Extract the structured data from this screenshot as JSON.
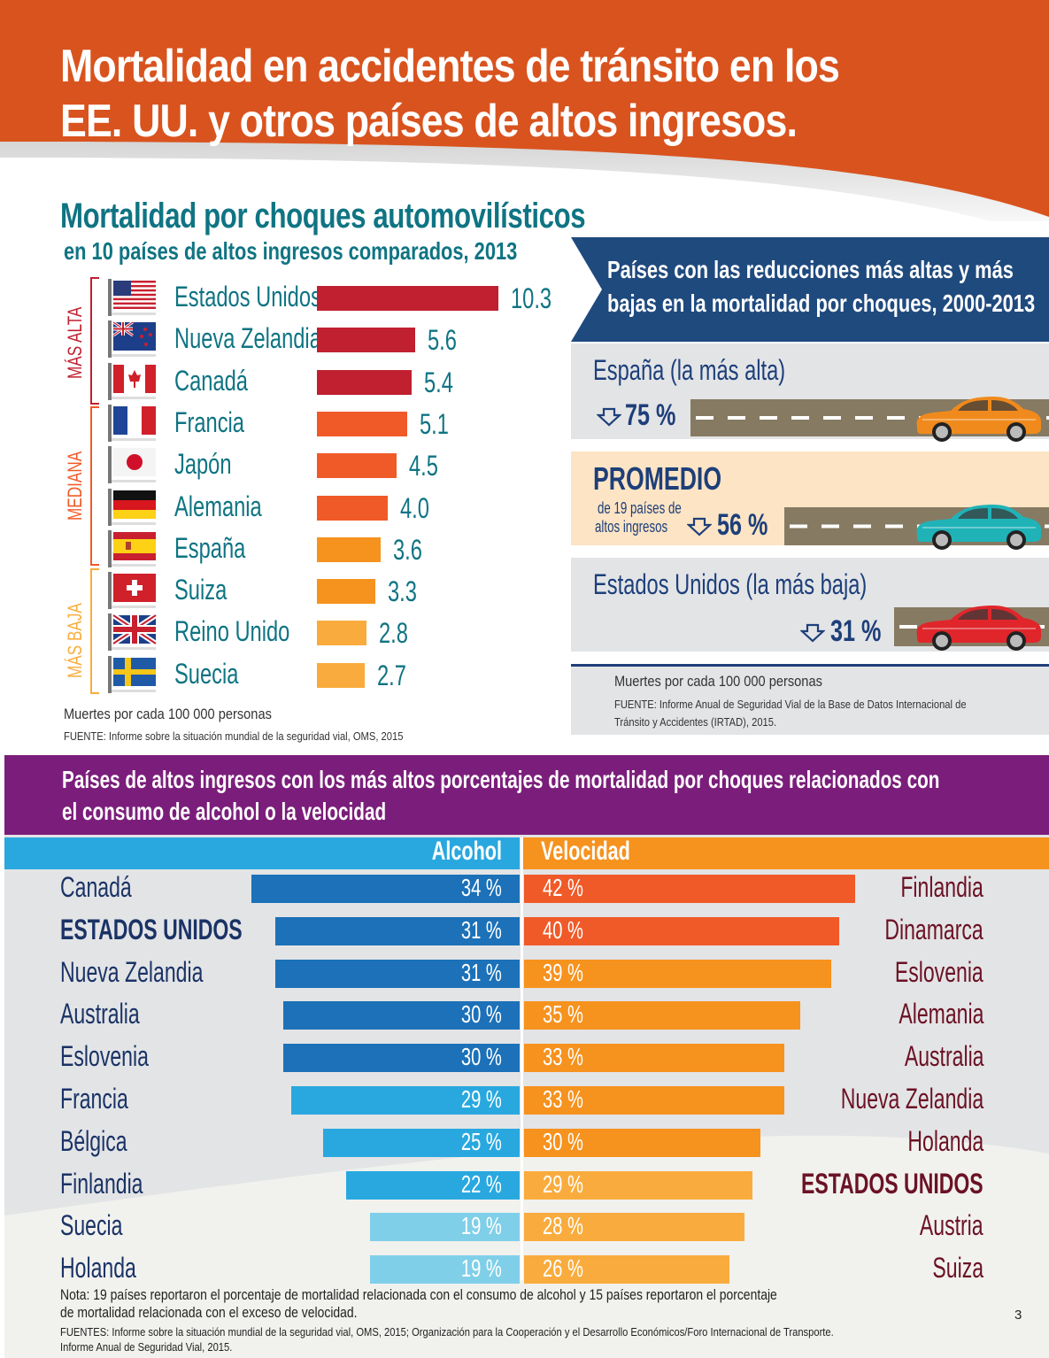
{
  "header": {
    "title_line1": "Mortalidad en accidentes de tránsito en los",
    "title_line2": "EE. UU. y otros países de altos ingresos.",
    "color": "#d9531e"
  },
  "left": {
    "title": "Mortalidad por choques automovilísticos",
    "subtitle": "en 10 países de altos ingresos comparados, 2013",
    "unit": "Muertes por cada 100 000 personas",
    "source": "FUENTE: Informe sobre la situación mundial de la seguridad vial, OMS, 2015",
    "groups": [
      {
        "label": "MÁS ALTA",
        "color": "#c0202f"
      },
      {
        "label": "MEDIANA",
        "color": "#f05a28"
      },
      {
        "label": "MÁS BAJA",
        "color": "#f9ac3d"
      }
    ]
  },
  "right": {
    "banner_title_line1": "Países con las reducciones más altas y más",
    "banner_title_line2": "bajas en la mortalidad por choques, 2000-2013",
    "spain_label": "España (la más alta)",
    "spain_pct": "75 %",
    "avg_label": "PROMEDIO",
    "avg_sub_line1": "de 19 países de",
    "avg_sub_line2": "altos ingresos",
    "avg_pct": "56 %",
    "us_label": "Estados Unidos  (la más baja)",
    "us_pct": "31 %",
    "unit": "Muertes por cada 100 000 personas",
    "source_line1": "FUENTE: Informe Anual de Seguridad Vial de la Base de Datos Internacional de",
    "source_line2": "Tránsito y Accidentes (IRTAD), 2015."
  },
  "bottom": {
    "title_line1": "Países de altos ingresos con los más altos porcentajes de mortalidad por choques relacionados con",
    "title_line2": "el consumo de alcohol o la velocidad",
    "alcohol_header": "Alcohol",
    "speed_header": "Velocidad",
    "note_line1": "Nota: 19 países reportaron el porcentaje de mortalidad relacionada con el consumo de alcohol y 15 países reportaron el porcentaje",
    "note_line2": "de mortalidad relacionada con el exceso de velocidad.",
    "sources_line1": "FUENTES: Informe sobre la situación mundial de la seguridad vial, OMS, 2015; Organización para la Cooperación y el  Desarrollo Económicos/Foro Internacional de Transporte.",
    "sources_line2": "Informe Anual de Seguridad Vial, 2015.",
    "page_number": "3"
  },
  "chart_data": [
    {
      "type": "bar",
      "orientation": "horizontal",
      "title": "Mortalidad por choques automovilísticos en 10 países de altos ingresos comparados, 2013",
      "xlabel": "Muertes por cada 100 000 personas",
      "categories": [
        "Estados Unidos",
        "Nueva Zelandia",
        "Canadá",
        "Francia",
        "Japón",
        "Alemania",
        "España",
        "Suiza",
        "Reino Unido",
        "Suecia"
      ],
      "values": [
        10.3,
        5.6,
        5.4,
        5.1,
        4.5,
        4.0,
        3.6,
        3.3,
        2.8,
        2.7
      ],
      "value_labels": [
        "10.3",
        "5.6",
        "5.4",
        "5.1",
        "4.5",
        "4.0",
        "3.6",
        "3.3",
        "2.8",
        "2.7"
      ],
      "flags": [
        "us-flag",
        "nz-flag",
        "canada-flag",
        "france-flag",
        "japan-flag",
        "germany-flag",
        "spain-flag",
        "switzerland-flag",
        "uk-flag",
        "sweden-flag"
      ],
      "bar_colors": [
        "#c0202f",
        "#c0202f",
        "#c0202f",
        "#f05a28",
        "#f05a28",
        "#f05a28",
        "#f6921e",
        "#f6921e",
        "#f9ac3d",
        "#f9ac3d"
      ],
      "groups": [
        "MÁS ALTA",
        "MÁS ALTA",
        "MÁS ALTA",
        "MEDIANA",
        "MEDIANA",
        "MEDIANA",
        "MEDIANA",
        "MÁS BAJA",
        "MÁS BAJA",
        "MÁS BAJA"
      ],
      "xlim": [
        0,
        10.3
      ]
    },
    {
      "type": "bar",
      "title": "Países con las reducciones más altas y más bajas en la mortalidad por choques, 2000-2013",
      "categories": [
        "España (la más alta)",
        "PROMEDIO de 19 países de altos ingresos",
        "Estados Unidos (la más baja)"
      ],
      "values": [
        75,
        56,
        31
      ],
      "unit": "% reducción",
      "car_colors": [
        "#f08a1c",
        "#1fb3b8",
        "#e0262b"
      ]
    },
    {
      "type": "bar",
      "orientation": "horizontal",
      "title": "Países de altos ingresos con los más altos porcentajes de mortalidad por choques relacionados con el consumo de alcohol o la velocidad",
      "series": [
        {
          "name": "Alcohol",
          "categories": [
            "Canadá",
            "ESTADOS UNIDOS",
            "Nueva Zelandia",
            "Australia",
            "Eslovenia",
            "Francia",
            "Bélgica",
            "Finlandia",
            "Suecia",
            "Holanda"
          ],
          "values": [
            34,
            31,
            31,
            30,
            30,
            29,
            25,
            22,
            19,
            19
          ],
          "colors": [
            "#1c71b8",
            "#1c71b8",
            "#1c71b8",
            "#1c71b8",
            "#1c71b8",
            "#29a8df",
            "#29a8df",
            "#29a8df",
            "#80cfe9",
            "#80cfe9"
          ],
          "highlight": [
            false,
            true,
            false,
            false,
            false,
            false,
            false,
            false,
            false,
            false
          ]
        },
        {
          "name": "Velocidad",
          "categories": [
            "Finlandia",
            "Dinamarca",
            "Eslovenia",
            "Alemania",
            "Australia",
            "Nueva Zelandia",
            "Holanda",
            "ESTADOS UNIDOS",
            "Austria",
            "Suiza"
          ],
          "values": [
            42,
            40,
            39,
            35,
            33,
            33,
            30,
            29,
            28,
            26
          ],
          "colors": [
            "#f05a28",
            "#f05a28",
            "#f6921e",
            "#f6921e",
            "#f6921e",
            "#f6921e",
            "#f6921e",
            "#f9ac3d",
            "#f9ac3d",
            "#f9ac3d"
          ],
          "highlight": [
            false,
            false,
            false,
            false,
            false,
            false,
            false,
            true,
            false,
            false
          ]
        }
      ],
      "unit": "%",
      "xlim": [
        0,
        42
      ]
    }
  ]
}
